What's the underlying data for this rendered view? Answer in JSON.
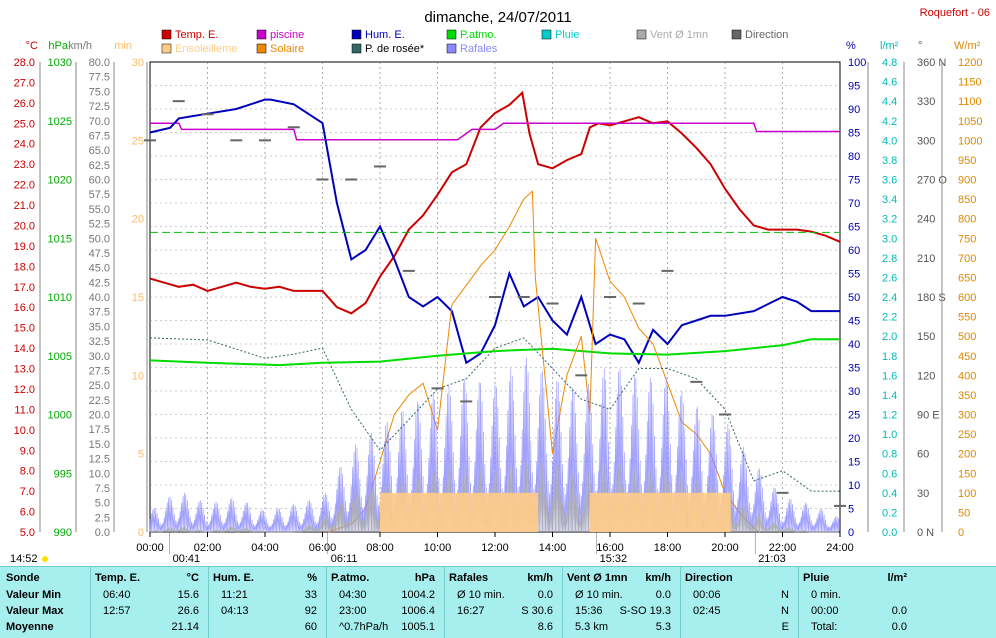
{
  "title": "dimanche, 24/07/2011",
  "station": "Roquefort - 06",
  "legend": [
    {
      "name": "Temp. E.",
      "color": "#cc0000"
    },
    {
      "name": "piscine",
      "color": "#cc00cc"
    },
    {
      "name": "Hum. E.",
      "color": "#0000bb"
    },
    {
      "name": "P.atmo.",
      "color": "#00dd00"
    },
    {
      "name": "Pluie",
      "color": "#00cccc"
    },
    {
      "name": "Vent Ø 1mn",
      "color": "#aaaaaa"
    },
    {
      "name": "Direction",
      "color": "#666666"
    },
    {
      "name": "Ensoleilleme",
      "color": "#ffcc88"
    },
    {
      "name": "Solaire",
      "color": "#ee8800"
    },
    {
      "name": "P. de rosée*",
      "color": "#336666"
    },
    {
      "name": "Rafales",
      "color": "#8888ff"
    }
  ],
  "axes": {
    "temp": {
      "unit": "°C",
      "ticks": [
        "28.0",
        "27.0",
        "26.0",
        "25.0",
        "24.0",
        "23.0",
        "22.0",
        "21.0",
        "20.0",
        "19.0",
        "18.0",
        "17.0",
        "16.0",
        "15.0",
        "14.0",
        "13.0",
        "12.0",
        "11.0",
        "10.0",
        "9.0",
        "8.0",
        "7.0",
        "6.0",
        "5.0"
      ]
    },
    "pressure": {
      "unit": "hPa",
      "ticks": [
        "1030",
        "1025",
        "1020",
        "1015",
        "1010",
        "1005",
        "1000",
        "995",
        "990"
      ]
    },
    "wind": {
      "unit": "km/h",
      "ticks": [
        "80.0",
        "77.5",
        "75.0",
        "72.5",
        "70.0",
        "67.5",
        "65.0",
        "62.5",
        "60.0",
        "57.5",
        "55.0",
        "52.5",
        "50.0",
        "47.5",
        "45.0",
        "42.5",
        "40.0",
        "37.5",
        "35.0",
        "32.5",
        "30.0",
        "27.5",
        "25.0",
        "22.5",
        "20.0",
        "17.5",
        "15.0",
        "12.5",
        "10.0",
        "7.5",
        "5.0",
        "2.5",
        "0.0"
      ]
    },
    "minutes": {
      "unit": "min",
      "ticks": [
        "30",
        "25",
        "20",
        "15",
        "10",
        "5",
        "0"
      ]
    },
    "humidity": {
      "unit": "%",
      "ticks": [
        "100",
        "95",
        "90",
        "85",
        "80",
        "75",
        "70",
        "65",
        "60",
        "55",
        "50",
        "45",
        "40",
        "35",
        "30",
        "25",
        "20",
        "15",
        "10",
        "5",
        "0"
      ]
    },
    "rain": {
      "unit": "l/m²",
      "ticks": [
        "4.8",
        "4.6",
        "4.4",
        "4.2",
        "4.0",
        "3.8",
        "3.6",
        "3.4",
        "3.2",
        "3.0",
        "2.8",
        "2.6",
        "2.4",
        "2.2",
        "2.0",
        "1.8",
        "1.6",
        "1.4",
        "1.2",
        "1.0",
        "0.8",
        "0.6",
        "0.4",
        "0.2",
        "0.0"
      ]
    },
    "direction": {
      "unit": "°",
      "ticks": [
        "360 N",
        "330",
        "300",
        "270 O",
        "240",
        "210",
        "180 S",
        "150",
        "120",
        "90 E",
        "60",
        "30",
        "0 N"
      ]
    },
    "solar": {
      "unit": "W/m²",
      "ticks": [
        "1200",
        "1150",
        "1100",
        "1050",
        "1000",
        "950",
        "900",
        "850",
        "800",
        "750",
        "700",
        "650",
        "600",
        "550",
        "500",
        "450",
        "400",
        "350",
        "300",
        "250",
        "200",
        "150",
        "100",
        "50",
        "0"
      ]
    },
    "time": {
      "ticks": [
        "00:00",
        "02:00",
        "04:00",
        "06:00",
        "08:00",
        "10:00",
        "12:00",
        "14:00",
        "16:00",
        "18:00",
        "20:00",
        "22:00",
        "24:00"
      ]
    }
  },
  "sun_markers": {
    "left": "14:52",
    "moonrise": "00:41",
    "sunrise": "06:11",
    "moonset": "15:32",
    "sunset": "21:03"
  },
  "chart_data": {
    "type": "line",
    "x_unit": "hour",
    "xlim": [
      0,
      24
    ],
    "series": [
      {
        "name": "Temp. E.",
        "unit": "°C",
        "x": [
          0,
          0.5,
          1,
          1.5,
          2,
          2.5,
          3,
          3.5,
          4,
          4.5,
          5,
          5.5,
          6,
          6.5,
          7,
          7.5,
          8,
          8.5,
          9,
          9.5,
          10,
          10.5,
          11,
          11.5,
          12,
          12.5,
          12.95,
          13.2,
          13.5,
          14,
          14.5,
          15,
          15.3,
          15.6,
          16,
          16.5,
          17,
          17.5,
          18,
          18.5,
          19,
          19.5,
          20,
          20.5,
          21,
          21.5,
          22,
          22.5,
          23,
          23.5,
          24
        ],
        "values": [
          17.4,
          17.2,
          17.0,
          17.1,
          16.8,
          17.0,
          17.2,
          17.0,
          16.9,
          17.0,
          16.8,
          16.8,
          16.8,
          16.0,
          15.7,
          16.2,
          17.5,
          18.5,
          19.8,
          20.5,
          21.5,
          22.6,
          23.0,
          24.8,
          25.5,
          25.9,
          26.5,
          24.5,
          23.0,
          22.8,
          23.2,
          23.5,
          24.8,
          25.0,
          24.9,
          25.1,
          25.3,
          25.0,
          25.1,
          24.5,
          23.8,
          23.0,
          21.8,
          20.8,
          20.0,
          19.8,
          19.8,
          19.8,
          19.7,
          19.5,
          19.2
        ]
      },
      {
        "name": "piscine",
        "unit": "°C",
        "x": [
          0,
          1,
          1.1,
          5,
          5.1,
          10.7,
          11,
          11.2,
          12,
          12.3,
          13.5,
          15.5,
          15.6,
          21,
          21.1,
          24
        ],
        "values": [
          25.0,
          25.0,
          24.7,
          24.7,
          24.2,
          24.2,
          24.5,
          24.7,
          24.7,
          25.0,
          25.0,
          25.0,
          25.0,
          25.0,
          24.6,
          24.6
        ]
      },
      {
        "name": "Hum. E.",
        "unit": "%",
        "x": [
          0,
          0.7,
          1,
          2,
          3,
          4,
          4.2,
          5,
          6,
          6.5,
          7,
          7.5,
          8,
          8.5,
          9,
          9.5,
          10,
          10.5,
          11,
          11.5,
          12,
          12.5,
          13,
          13.5,
          14,
          14.5,
          15,
          15.5,
          16,
          16.5,
          17,
          17.5,
          18,
          18.5,
          19,
          19.5,
          20,
          21,
          22,
          22.5,
          23,
          24
        ],
        "values": [
          85,
          86,
          88,
          89,
          90,
          92,
          92,
          91,
          87,
          70,
          58,
          60,
          65,
          58,
          50,
          48,
          50,
          47,
          36,
          38,
          44,
          55,
          48,
          50,
          45,
          42,
          50,
          40,
          42,
          41,
          36,
          43,
          40,
          44,
          45,
          46,
          46,
          47,
          50,
          49,
          47,
          47
        ]
      },
      {
        "name": "P.atmo.",
        "unit": "hPa",
        "x": [
          0,
          2,
          4.5,
          6,
          8,
          10,
          12,
          14,
          16,
          18,
          20,
          22,
          23,
          24
        ],
        "values": [
          1004.6,
          1004.4,
          1004.2,
          1004.4,
          1004.5,
          1005.0,
          1005.4,
          1005.6,
          1005.2,
          1005.1,
          1005.4,
          1005.9,
          1006.4,
          1006.4
        ]
      },
      {
        "name": "Solaire",
        "unit": "W/m²",
        "x": [
          6.2,
          7,
          7.5,
          8,
          8.5,
          9,
          9.5,
          10,
          10.5,
          11,
          11.5,
          12,
          12.5,
          13,
          13.3,
          13.4,
          14,
          14.5,
          15,
          15.3,
          15.5,
          16,
          16.5,
          17,
          17.5,
          18,
          18.5,
          19,
          19.5,
          20,
          20.5,
          21,
          21.2
        ],
        "values": [
          0,
          20,
          60,
          180,
          300,
          350,
          380,
          260,
          580,
          630,
          680,
          720,
          780,
          850,
          870,
          650,
          200,
          400,
          500,
          300,
          750,
          640,
          600,
          520,
          480,
          380,
          280,
          250,
          200,
          100,
          50,
          10,
          0
        ]
      },
      {
        "name": "Rafales",
        "unit": "km/h",
        "x": [
          0,
          1,
          2,
          3,
          4,
          5,
          6,
          7,
          8,
          9,
          10,
          11,
          12,
          13,
          14,
          15,
          16,
          17,
          18,
          19,
          20,
          21,
          22,
          23,
          24
        ],
        "values": [
          3,
          6,
          4,
          5,
          3,
          4,
          5,
          12,
          15,
          18,
          20,
          22,
          21,
          25,
          22,
          20,
          24,
          22,
          22,
          18,
          16,
          10,
          5,
          4,
          2
        ]
      },
      {
        "name": "Vent Ø 1mn",
        "unit": "km/h",
        "x": [
          0,
          1,
          2,
          3,
          4,
          5,
          6,
          7,
          8,
          9,
          10,
          11,
          12,
          13,
          14,
          15,
          16,
          17,
          18,
          19,
          20,
          21,
          22,
          23,
          24
        ],
        "values": [
          0,
          1,
          0,
          1,
          0,
          0,
          2,
          6,
          7,
          8,
          9,
          9,
          9,
          10,
          10,
          8,
          10,
          9,
          9,
          8,
          6,
          3,
          1,
          0,
          0
        ]
      },
      {
        "name": "P. de rosée*",
        "unit": "°C",
        "x": [
          0,
          2,
          4,
          5,
          6,
          7,
          8,
          9,
          10,
          11,
          12,
          13,
          14,
          15,
          16,
          17,
          18,
          19,
          20,
          21,
          22,
          23,
          24
        ],
        "values": [
          14.5,
          14.4,
          13.5,
          13.7,
          14.0,
          11.0,
          9.0,
          10.5,
          12.0,
          12.5,
          14.0,
          14.5,
          13.0,
          11.5,
          11.0,
          13.0,
          13.0,
          12.5,
          11.0,
          7.5,
          8.0,
          7.0,
          7.0
        ]
      },
      {
        "name": "Direction",
        "unit": "°",
        "x": [
          0,
          1,
          2,
          3,
          4,
          5,
          6,
          7,
          8,
          9,
          10,
          11,
          12,
          13,
          14,
          15,
          16,
          17,
          18,
          19,
          20,
          22,
          24
        ],
        "values": [
          300,
          330,
          320,
          300,
          300,
          310,
          270,
          270,
          280,
          200,
          110,
          100,
          180,
          180,
          175,
          120,
          180,
          175,
          200,
          115,
          90,
          30,
          20
        ]
      },
      {
        "name": "Ensoleilleme",
        "unit": "min",
        "x": [
          8,
          13.5,
          15.3,
          20.2
        ],
        "values": [
          30,
          0,
          30,
          0
        ]
      }
    ]
  },
  "table": {
    "columns": [
      {
        "header": "Sonde",
        "unit": "",
        "rows": [
          "Valeur Min",
          "Valeur Max",
          "Moyenne"
        ]
      },
      {
        "header": "Temp. E.",
        "unit": "°C",
        "rows": [
          [
            "06:40",
            "15.6"
          ],
          [
            "12:57",
            "26.6"
          ],
          [
            "",
            "21.14"
          ]
        ]
      },
      {
        "header": "Hum. E.",
        "unit": "%",
        "rows": [
          [
            "11:21",
            "33"
          ],
          [
            "04:13",
            "92"
          ],
          [
            "",
            "60"
          ]
        ]
      },
      {
        "header": "P.atmo.",
        "unit": "hPa",
        "rows": [
          [
            "04:30",
            "1004.2"
          ],
          [
            "23:00",
            "1006.4"
          ],
          [
            "^0.7hPa/h",
            "1005.1"
          ]
        ]
      },
      {
        "header": "Rafales",
        "unit": "km/h",
        "rows": [
          [
            "Ø 10 min.",
            "0.0"
          ],
          [
            "16:27",
            "S 30.6"
          ],
          [
            "",
            "8.6"
          ]
        ]
      },
      {
        "header": "Vent Ø 1mn",
        "unit": "km/h",
        "rows": [
          [
            "Ø 10 min.",
            "0.0"
          ],
          [
            "15:36",
            "S-SO 19.3"
          ],
          [
            "5.3 km",
            "5.3"
          ]
        ]
      },
      {
        "header": "Direction",
        "unit": "",
        "rows": [
          [
            "00:06",
            "N"
          ],
          [
            "02:45",
            "N"
          ],
          [
            "",
            "E"
          ]
        ]
      },
      {
        "header": "Pluie",
        "unit": "l/m²",
        "rows": [
          [
            "0 min.",
            ""
          ],
          [
            "00:00",
            "0.0"
          ],
          [
            "Total:",
            "0.0"
          ]
        ]
      }
    ]
  }
}
